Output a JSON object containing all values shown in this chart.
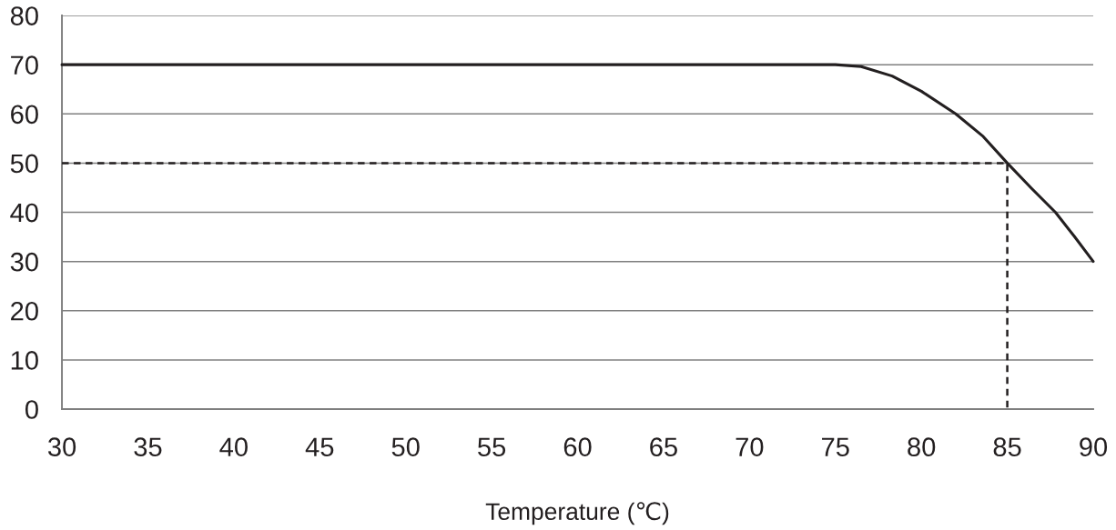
{
  "chart_data": {
    "type": "line",
    "xlabel": "Temperature (℃)",
    "xlim": [
      30,
      90
    ],
    "xticks": [
      30,
      35,
      40,
      45,
      50,
      55,
      60,
      65,
      70,
      75,
      80,
      85,
      90
    ],
    "ylim": [
      0,
      80
    ],
    "yticks": [
      0,
      10,
      20,
      30,
      40,
      50,
      60,
      70,
      80
    ],
    "grid": "y",
    "series": [
      {
        "color": "#231f20",
        "line_style": "solid",
        "x": [
          30,
          74,
          75,
          76.5,
          78.3,
          80,
          82,
          83.6,
          85,
          86.4,
          87.8,
          88.9,
          90
        ],
        "values": [
          70,
          70,
          70,
          69.6,
          67.7,
          64.6,
          60,
          55.4,
          50,
          44.9,
          40,
          35.1,
          30
        ]
      },
      {
        "color": "#231f20",
        "line_style": "dashed",
        "x": [
          30,
          85,
          85
        ],
        "values": [
          50,
          50,
          0
        ]
      }
    ]
  }
}
